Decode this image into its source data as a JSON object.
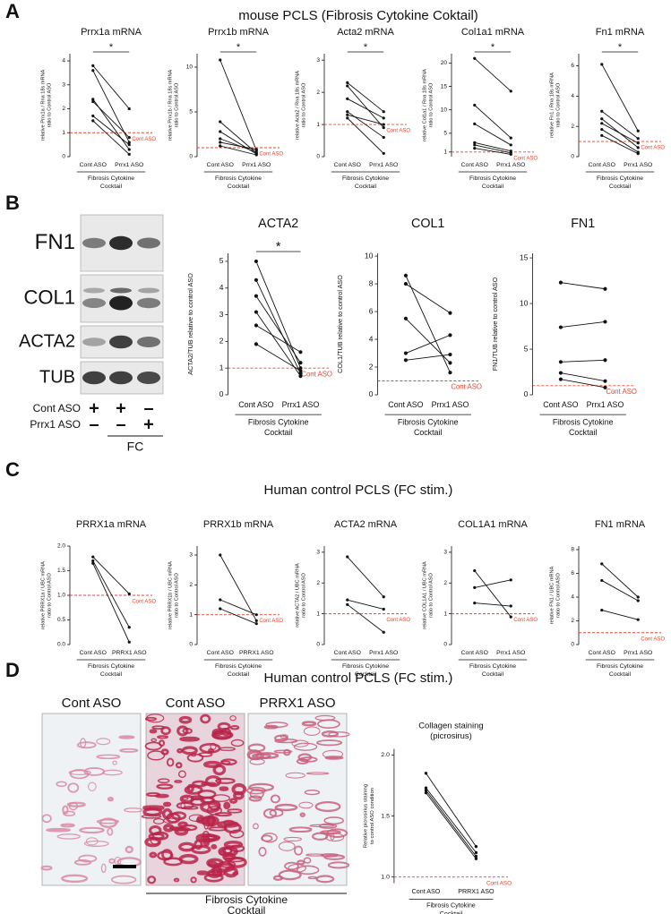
{
  "panels": {
    "A": "A",
    "B": "B",
    "C": "C",
    "D": "D"
  },
  "titles": {
    "A": "mouse PCLS (Fibrosis Cytokine Coktail)",
    "C": "Human  control PCLS (FC stim.)",
    "D": "Human  control PCLS (FC stim.)"
  },
  "blot": {
    "bands": [
      "FN1",
      "COL1",
      "ACTA2",
      "TUB"
    ],
    "rows": [
      {
        "label": "Cont ASO",
        "signs": [
          "+",
          "+",
          "–"
        ]
      },
      {
        "label": "Prrx1 ASO",
        "signs": [
          "–",
          "–",
          "+"
        ]
      }
    ],
    "treatment": "FC"
  },
  "histology": {
    "labels": [
      "Cont ASO",
      "Cont ASO",
      "PRRX1 ASO"
    ],
    "group_label": [
      "Fibrosis Cytokine",
      "Cocktail"
    ]
  },
  "chart_data": [
    {
      "type": "paired",
      "title": "Prrx1a mRNA",
      "ylabel": [
        "relative Prrx1a / Rna 18s mRNA",
        "ratio to Control ASO"
      ],
      "categories": [
        "Cont ASO",
        "Prrx1 ASO"
      ],
      "group_label": [
        "Fibrosis Cytokine",
        "Cocktail"
      ],
      "color": "#111111",
      "ref_line": {
        "value": 1,
        "label": "Cont ASO",
        "color": "#e8452c"
      },
      "significance": "*",
      "ylim": [
        0,
        4.3
      ],
      "yticks": [
        0,
        1,
        2,
        3,
        4
      ],
      "series": [
        {
          "values": [
            3.8,
            2.0
          ]
        },
        {
          "values": [
            3.6,
            0.6
          ]
        },
        {
          "values": [
            2.4,
            0.3
          ]
        },
        {
          "values": [
            2.3,
            0.8
          ]
        },
        {
          "values": [
            1.7,
            0.5
          ]
        },
        {
          "values": [
            1.5,
            0.1
          ]
        }
      ]
    },
    {
      "type": "paired",
      "title": "Prrx1b mRNA",
      "ylabel": [
        "relative Prrx1b / Rna 18s mRNA",
        "ratio to Control ASO"
      ],
      "categories": [
        "Cont ASO",
        "Prrx1 ASO"
      ],
      "group_label": [
        "Fibrosis Cytokine",
        "Cocktail"
      ],
      "color": "#111111",
      "ref_line": {
        "value": 1,
        "label": "Cont ASO",
        "color": "#e8452c"
      },
      "significance": "*",
      "ylim": [
        0,
        11.5
      ],
      "yticks": [
        0,
        5,
        10
      ],
      "series": [
        {
          "values": [
            10.8,
            0.7
          ]
        },
        {
          "values": [
            3.9,
            0.4
          ]
        },
        {
          "values": [
            2.8,
            0.3
          ]
        },
        {
          "values": [
            2.0,
            0.5
          ]
        },
        {
          "values": [
            1.6,
            0.8
          ]
        },
        {
          "values": [
            1.2,
            0.2
          ]
        }
      ]
    },
    {
      "type": "paired",
      "title": "Acta2 mRNA",
      "ylabel": [
        "relative Acta2 / Rna 18s mRNA",
        "ratio to Control ASO"
      ],
      "categories": [
        "Cont ASO",
        "Prrx1 ASO"
      ],
      "group_label": [
        "Fibrosis Cytokine",
        "Cocktail"
      ],
      "color": "#111111",
      "ref_line": {
        "value": 1,
        "label": "Cont ASO",
        "color": "#e8452c"
      },
      "significance": "*",
      "ylim": [
        0,
        3.2
      ],
      "yticks": [
        0,
        1,
        2,
        3
      ],
      "series": [
        {
          "values": [
            2.3,
            1.4
          ]
        },
        {
          "values": [
            2.2,
            0.9
          ]
        },
        {
          "values": [
            1.8,
            1.2
          ]
        },
        {
          "values": [
            1.4,
            0.6
          ]
        },
        {
          "values": [
            1.3,
            1.0
          ]
        },
        {
          "values": [
            1.2,
            0.1
          ]
        }
      ]
    },
    {
      "type": "paired",
      "title": "Col1a1 mRNA",
      "ylabel": [
        "relative Col1a1 / Rna 18s mRNA",
        "ratio to Control ASO"
      ],
      "categories": [
        "Cont ASO",
        "Prrx1 ASO"
      ],
      "group_label": [
        "Fibrosis Cytokine",
        "Cocktail"
      ],
      "color": "#111111",
      "ref_line": {
        "value": 1,
        "label": "Cont ASO",
        "color": "#e8452c"
      },
      "significance": "*",
      "ylim": [
        0,
        22
      ],
      "yticks": [
        1,
        5,
        10,
        15,
        20
      ],
      "series": [
        {
          "values": [
            21,
            14
          ]
        },
        {
          "values": [
            11,
            4
          ]
        },
        {
          "values": [
            7,
            2.5
          ]
        },
        {
          "values": [
            3,
            1.2
          ]
        },
        {
          "values": [
            2.5,
            0.8
          ]
        },
        {
          "values": [
            1.8,
            0.5
          ]
        }
      ]
    },
    {
      "type": "paired",
      "title": "Fn1 mRNA",
      "ylabel": [
        "relative Fn1 / Rna 18s mRNA",
        "ratio to Control ASO"
      ],
      "categories": [
        "Cont ASO",
        "Prrx1 ASO"
      ],
      "group_label": [
        "Fibrosis Cytokine",
        "Cocktail"
      ],
      "color": "#111111",
      "ref_line": {
        "value": 1,
        "label": "Cont ASO",
        "color": "#e8452c"
      },
      "significance": "*",
      "ylim": [
        0,
        6.8
      ],
      "yticks": [
        0,
        2,
        4,
        6
      ],
      "series": [
        {
          "values": [
            6.1,
            1.7
          ]
        },
        {
          "values": [
            3.0,
            1.2
          ]
        },
        {
          "values": [
            2.5,
            0.6
          ]
        },
        {
          "values": [
            2.2,
            0.9
          ]
        },
        {
          "values": [
            1.8,
            0.3
          ]
        },
        {
          "values": [
            1.4,
            0.2
          ]
        }
      ]
    },
    {
      "type": "paired",
      "title": "ACTA2",
      "ylabel": [
        "ACTA2/TUB relative to control ASO"
      ],
      "categories": [
        "Cont ASO",
        "Prrx1 ASO"
      ],
      "group_label": [
        "Fibrosis Cytokine",
        "Cocktail"
      ],
      "color": "#111111",
      "ref_line": {
        "value": 1,
        "label": "Cont ASO",
        "color": "#e8452c"
      },
      "significance": "*",
      "ylim": [
        0,
        5.3
      ],
      "yticks": [
        0,
        1,
        2,
        3,
        4,
        5
      ],
      "series": [
        {
          "values": [
            5.0,
            1.0
          ]
        },
        {
          "values": [
            4.3,
            0.8
          ]
        },
        {
          "values": [
            3.7,
            1.2
          ]
        },
        {
          "values": [
            3.1,
            0.7
          ]
        },
        {
          "values": [
            2.6,
            1.6
          ]
        },
        {
          "values": [
            1.9,
            0.9
          ]
        }
      ]
    },
    {
      "type": "paired",
      "title": "COL1",
      "ylabel": [
        "COL1/TUB relative to control ASO"
      ],
      "categories": [
        "Cont ASO",
        "Prrx1 ASO"
      ],
      "group_label": [
        "Fibrosis Cytokine",
        "Cocktail"
      ],
      "color": "#111111",
      "ref_line": {
        "value": 1,
        "label": "Cont ASO",
        "color": "#e8452c"
      },
      "ylim": [
        0,
        10.2
      ],
      "yticks": [
        0,
        2,
        4,
        6,
        8,
        10
      ],
      "series": [
        {
          "values": [
            8.6,
            1.6
          ]
        },
        {
          "values": [
            8.0,
            5.9
          ]
        },
        {
          "values": [
            5.5,
            2.3
          ]
        },
        {
          "values": [
            3.0,
            4.3
          ]
        },
        {
          "values": [
            2.5,
            2.9
          ]
        }
      ]
    },
    {
      "type": "paired",
      "title": "FN1",
      "ylabel": [
        "FN1/TUB relative to control ASO"
      ],
      "categories": [
        "Cont ASO",
        "Prrx1 ASO"
      ],
      "group_label": [
        "Fibrosis Cytokine",
        "Cocktail"
      ],
      "color": "#111111",
      "ref_line": {
        "value": 1,
        "label": "Cont ASO",
        "color": "#e8452c"
      },
      "ylim": [
        0,
        15.5
      ],
      "yticks": [
        0,
        5,
        10,
        15
      ],
      "series": [
        {
          "values": [
            12.3,
            11.6
          ]
        },
        {
          "values": [
            7.4,
            8.0
          ]
        },
        {
          "values": [
            3.6,
            3.8
          ]
        },
        {
          "values": [
            2.4,
            1.5
          ]
        },
        {
          "values": [
            1.7,
            0.8
          ]
        }
      ]
    },
    {
      "type": "paired",
      "title": "PRRX1a mRNA",
      "ylabel": [
        "relative PRRX1a / UBC mRNA",
        "ratio to Control ASO"
      ],
      "categories": [
        "Cont ASO",
        "PRRX1 ASO"
      ],
      "group_label": [
        "Fibrosis Cytokine",
        "Cocktail"
      ],
      "color": "#111111",
      "ref_line": {
        "value": 1,
        "label": "Cont ASO",
        "color": "#e8452c"
      },
      "ylim": [
        0,
        2.0
      ],
      "yticks": [
        {
          "value": 0,
          "label": "0.0"
        },
        {
          "value": 0.5,
          "label": "0.5"
        },
        {
          "value": 1,
          "label": "1.0"
        },
        {
          "value": 1.5,
          "label": "1.5"
        },
        {
          "value": 2,
          "label": "2.0"
        }
      ],
      "series": [
        {
          "values": [
            1.78,
            1.03
          ]
        },
        {
          "values": [
            1.7,
            0.35
          ]
        },
        {
          "values": [
            1.65,
            0.05
          ]
        }
      ]
    },
    {
      "type": "paired",
      "title": "PRRX1b mRNA",
      "ylabel": [
        "relative PRRX1b / UBC mRNA",
        "ratio to Control ASO"
      ],
      "categories": [
        "Cont ASO",
        "PRRX1 ASO"
      ],
      "group_label": [
        "Fibrosis Cytokine",
        "Cocktail"
      ],
      "color": "#111111",
      "ref_line": {
        "value": 1,
        "label": "Cont ASO",
        "color": "#e8452c"
      },
      "ylim": [
        0,
        3.3
      ],
      "yticks": [
        0,
        1,
        2,
        3
      ],
      "series": [
        {
          "values": [
            3.0,
            0.8
          ]
        },
        {
          "values": [
            1.5,
            1.0
          ]
        },
        {
          "values": [
            1.2,
            0.7
          ]
        }
      ]
    },
    {
      "type": "paired",
      "title": "ACTA2 mRNA",
      "ylabel": [
        "relative ACTA2 / UBC mRNA",
        "ratio to Control ASO"
      ],
      "categories": [
        "Cont ASO",
        "Prrx1 ASO"
      ],
      "group_label": [
        "Fibrosis Cytokine",
        "Cocktail"
      ],
      "color": "#111111",
      "ref_line": {
        "value": 1,
        "label": "Cont ASO",
        "color": "#e8452c"
      },
      "ylim": [
        0,
        3.2
      ],
      "yticks": [
        0,
        1,
        2,
        3
      ],
      "series": [
        {
          "values": [
            2.85,
            1.55
          ]
        },
        {
          "values": [
            1.45,
            1.15
          ]
        },
        {
          "values": [
            1.3,
            0.4
          ]
        }
      ]
    },
    {
      "type": "paired",
      "title": "COL1A1 mRNA",
      "ylabel": [
        "relative COL1A1 / UBC mRNA",
        "ratio to Control ASO"
      ],
      "categories": [
        "Cont ASO",
        "Prrx1 ASO"
      ],
      "group_label": [
        "Fibrosis Cytokine",
        "Cocktail"
      ],
      "color": "#111111",
      "ref_line": {
        "value": 1,
        "label": "Cont ASO",
        "color": "#e8452c"
      },
      "ylim": [
        0,
        3.2
      ],
      "yticks": [
        0,
        1,
        2,
        3
      ],
      "series": [
        {
          "values": [
            2.4,
            0.9
          ]
        },
        {
          "values": [
            1.85,
            2.1
          ]
        },
        {
          "values": [
            1.35,
            1.25
          ]
        }
      ]
    },
    {
      "type": "paired",
      "title": "FN1 mRNA",
      "ylabel": [
        "relative FN1 / UBC mRNA",
        "ratio to Control ASO"
      ],
      "categories": [
        "Cont ASO",
        "Prrx1 ASO"
      ],
      "group_label": [
        "Fibrosis Cytokine",
        "Cocktail"
      ],
      "color": "#111111",
      "ref_line": {
        "value": 1,
        "label": "Cont ASO",
        "color": "#e8452c"
      },
      "ylim": [
        0,
        8.3
      ],
      "yticks": [
        0,
        2,
        4,
        6,
        8
      ],
      "series": [
        {
          "values": [
            6.8,
            4.0
          ]
        },
        {
          "values": [
            5.4,
            3.7
          ]
        },
        {
          "values": [
            2.9,
            2.1
          ]
        }
      ]
    },
    {
      "type": "paired",
      "title": [
        "Collagen staining",
        "(picrosirus)"
      ],
      "ylabel": [
        "Relative picrosirius staining",
        "to control ASO condition"
      ],
      "categories": [
        "Cont ASO",
        "PRRX1 ASO"
      ],
      "group_label": [
        "Fibrosis Cytokine",
        "Cocktail"
      ],
      "color": "#111111",
      "ref_line": {
        "value": 1,
        "label": "Cont ASO",
        "color": "#e8452c"
      },
      "ylim": [
        0.95,
        2.05
      ],
      "yticks": [
        {
          "value": 1,
          "label": "1.0"
        },
        {
          "value": 1.5,
          "label": "1.5"
        },
        {
          "value": 2,
          "label": "2.0"
        }
      ],
      "series": [
        {
          "values": [
            1.85,
            1.25
          ]
        },
        {
          "values": [
            1.73,
            1.2
          ]
        },
        {
          "values": [
            1.71,
            1.17
          ]
        },
        {
          "values": [
            1.69,
            1.15
          ]
        }
      ]
    }
  ]
}
